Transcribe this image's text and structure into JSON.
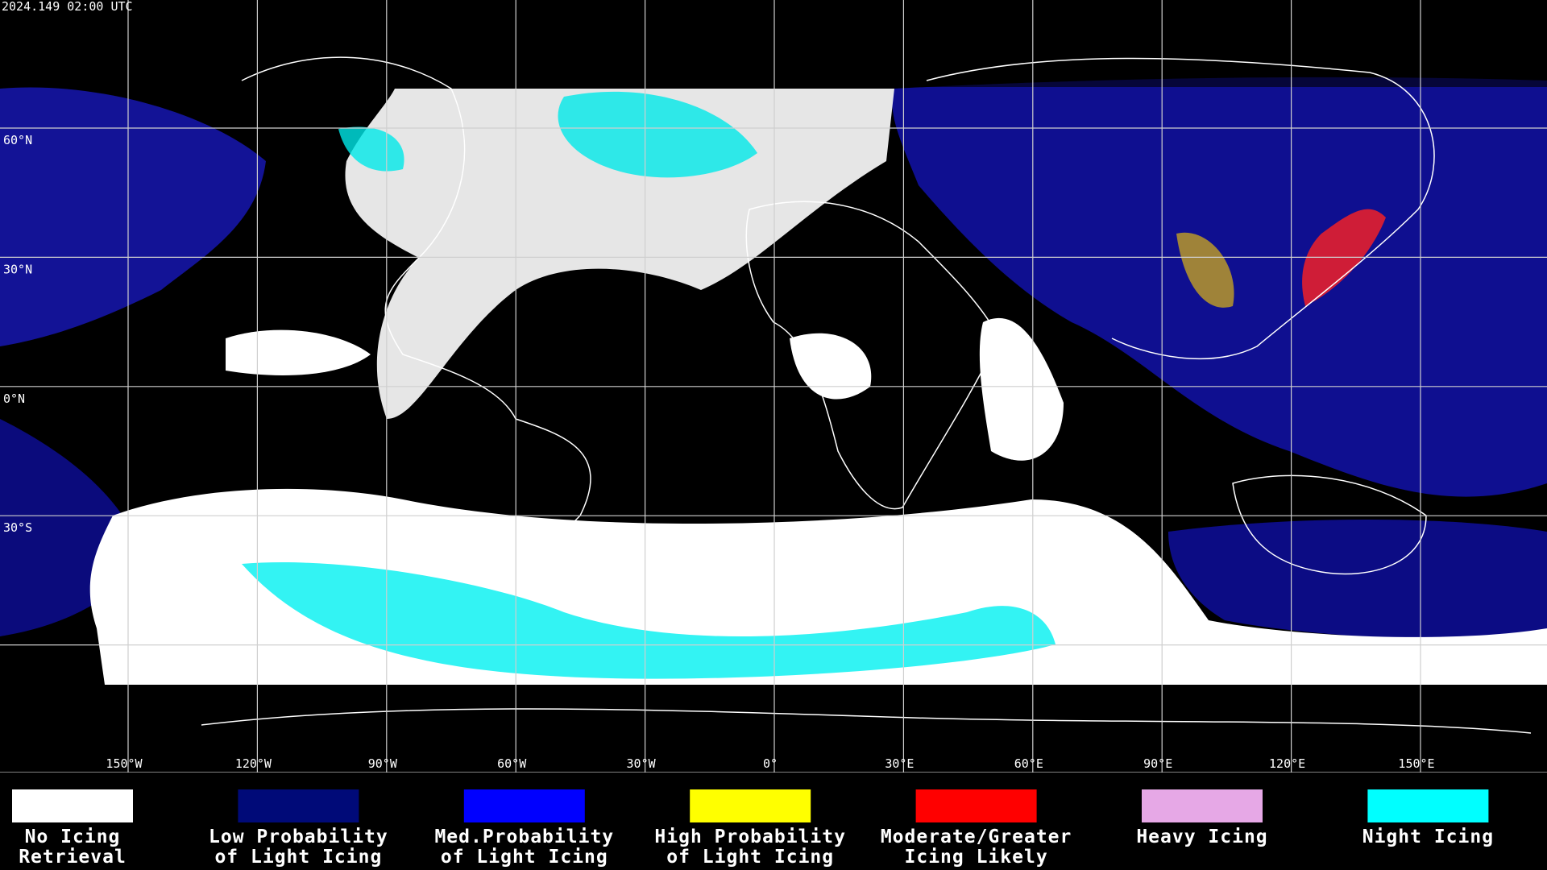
{
  "timestamp": "2024.149 02:00 UTC",
  "longitude_labels": [
    "150°W",
    "120°W",
    "90°W",
    "60°W",
    "30°W",
    "0°",
    "30°E",
    "60°E",
    "90°E",
    "120°E",
    "150°E"
  ],
  "latitude_labels": [
    "60°N",
    "30°N",
    "0°N",
    "30°S"
  ],
  "legend": [
    {
      "label": [
        "No Icing",
        "Retrieval"
      ],
      "color": "#ffffff"
    },
    {
      "label": [
        "Low Probability",
        "of Light Icing"
      ],
      "color": "#000a78"
    },
    {
      "label": [
        "Med.Probability",
        "of Light Icing"
      ],
      "color": "#0000ff"
    },
    {
      "label": [
        "High Probability",
        "of Light Icing"
      ],
      "color": "#ffff00"
    },
    {
      "label": [
        "Moderate/Greater",
        "Icing Likely"
      ],
      "color": "#ff0000"
    },
    {
      "label": [
        "Heavy Icing"
      ],
      "color": "#e6a8e6"
    },
    {
      "label": [
        "Night Icing"
      ],
      "color": "#00ffff"
    }
  ]
}
